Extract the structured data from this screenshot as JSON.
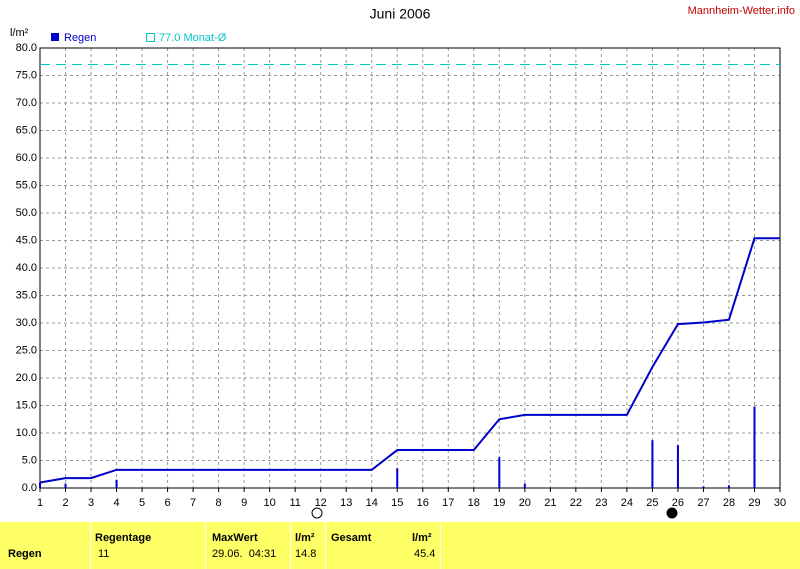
{
  "chart_data": {
    "type": "bar",
    "title": "Juni 2006",
    "source": "Mannheim-Wetter.info",
    "y_label": "l/m²",
    "x": [
      1,
      2,
      3,
      4,
      5,
      6,
      7,
      8,
      9,
      10,
      11,
      12,
      13,
      14,
      15,
      16,
      17,
      18,
      19,
      20,
      21,
      22,
      23,
      24,
      25,
      26,
      27,
      28,
      29,
      30
    ],
    "xlim": [
      1,
      30
    ],
    "xticks": [
      1,
      2,
      3,
      4,
      5,
      6,
      7,
      8,
      9,
      10,
      11,
      12,
      13,
      14,
      15,
      16,
      17,
      18,
      19,
      20,
      21,
      22,
      23,
      24,
      25,
      26,
      27,
      28,
      29,
      30
    ],
    "ylim": [
      0,
      80
    ],
    "yticks": [
      {
        "value": 0,
        "label": "0.0"
      },
      {
        "value": 5,
        "label": "5.0"
      },
      {
        "value": 10,
        "label": "10.0"
      },
      {
        "value": 15,
        "label": "15.0"
      },
      {
        "value": 20,
        "label": "20.0"
      },
      {
        "value": 25,
        "label": "25.0"
      },
      {
        "value": 30,
        "label": "30.0"
      },
      {
        "value": 35,
        "label": "35.0"
      },
      {
        "value": 40,
        "label": "40.0"
      },
      {
        "value": 45,
        "label": "45.0"
      },
      {
        "value": 50,
        "label": "50.0"
      },
      {
        "value": 55,
        "label": "55.0"
      },
      {
        "value": 60,
        "label": "60.0"
      },
      {
        "value": 65,
        "label": "65.0"
      },
      {
        "value": 70,
        "label": "70.0"
      },
      {
        "value": 75,
        "label": "75.0"
      },
      {
        "value": 80,
        "label": "80.0"
      }
    ],
    "grid": true,
    "series": [
      {
        "name": "Regen",
        "type": "bar",
        "color": "#0000cc",
        "values": [
          1.0,
          0.8,
          0,
          1.5,
          0,
          0,
          0,
          0,
          0,
          0,
          0,
          0,
          0,
          0,
          3.6,
          0,
          0,
          0,
          5.6,
          0.8,
          0,
          0,
          0,
          0,
          8.7,
          7.8,
          0.3,
          0.5,
          14.8,
          0
        ]
      },
      {
        "type": "line",
        "color": "#0000cc",
        "values": [
          1.0,
          1.8,
          1.8,
          3.3,
          3.3,
          3.3,
          3.3,
          3.3,
          3.3,
          3.3,
          3.3,
          3.3,
          3.3,
          3.3,
          6.9,
          6.9,
          6.9,
          6.9,
          12.5,
          13.3,
          13.3,
          13.3,
          13.3,
          13.3,
          22.0,
          29.8,
          30.1,
          30.6,
          45.4,
          45.4
        ]
      }
    ],
    "reference_line": {
      "name": "77.0 Monat-Ø",
      "value": 77.0,
      "color": "#00c8c8"
    }
  },
  "summary": {
    "header": [
      "Regentage",
      "MaxWert",
      "l/m²",
      "Gesamt",
      "l/m²"
    ],
    "rows": [
      [
        "Regen",
        "11",
        "29.06.  04:31",
        "14.8",
        "45.4"
      ]
    ]
  }
}
